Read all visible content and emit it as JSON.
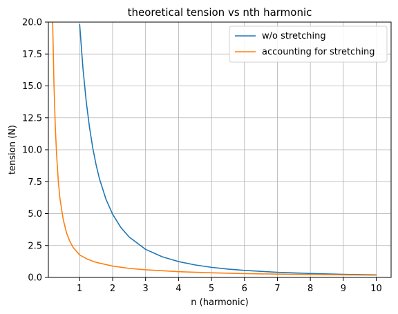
{
  "chart_data": {
    "type": "line",
    "title": "theoretical tension vs nth harmonic",
    "xlabel": "n (harmonic)",
    "ylabel": "tension (N)",
    "xlim": [
      0.05,
      10.45
    ],
    "ylim": [
      0,
      20
    ],
    "xticks": [
      1,
      2,
      3,
      4,
      5,
      6,
      7,
      8,
      9,
      10
    ],
    "yticks": [
      0,
      2.5,
      5,
      7.5,
      10,
      12.5,
      15,
      17.5,
      20
    ],
    "xtick_labels": [
      "1",
      "2",
      "3",
      "4",
      "5",
      "6",
      "7",
      "8",
      "9",
      "10"
    ],
    "ytick_labels": [
      "0.0",
      "2.5",
      "5.0",
      "7.5",
      "10.0",
      "12.5",
      "15.0",
      "17.5",
      "20.0"
    ],
    "grid": true,
    "legend_position": "top-right",
    "series": [
      {
        "name": "w/o stretching",
        "color": "#1f77b4",
        "x": [
          1,
          1.1,
          1.2,
          1.3,
          1.4,
          1.5,
          1.6,
          1.8,
          2,
          2.25,
          2.5,
          3,
          3.5,
          4,
          4.5,
          5,
          5.5,
          6,
          7,
          8,
          9,
          10
        ],
        "y": [
          19.8,
          16.36,
          13.75,
          11.72,
          10.1,
          8.8,
          7.73,
          6.11,
          4.95,
          3.91,
          3.17,
          2.2,
          1.62,
          1.24,
          0.98,
          0.79,
          0.65,
          0.55,
          0.4,
          0.31,
          0.24,
          0.2
        ]
      },
      {
        "name": "accounting for stretching",
        "color": "#ff7f0e",
        "x": [
          0.18,
          0.22,
          0.26,
          0.3,
          0.35,
          0.4,
          0.5,
          0.6,
          0.7,
          0.8,
          1,
          1.25,
          1.5,
          2,
          2.5,
          3,
          4,
          5,
          6,
          7,
          8,
          9,
          10
        ],
        "y": [
          20,
          15.1,
          11.8,
          9.6,
          7.6,
          6.2,
          4.55,
          3.5,
          2.83,
          2.35,
          1.76,
          1.41,
          1.18,
          0.89,
          0.71,
          0.6,
          0.45,
          0.36,
          0.3,
          0.26,
          0.23,
          0.2,
          0.18
        ]
      }
    ]
  }
}
